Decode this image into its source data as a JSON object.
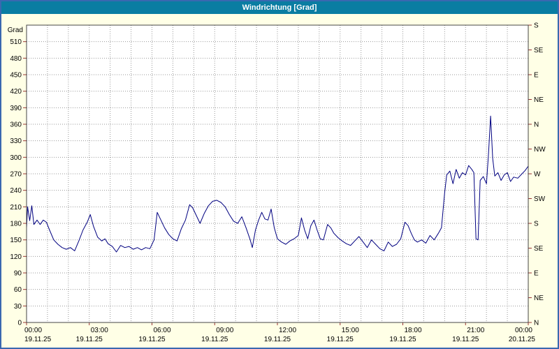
{
  "window": {
    "title": "Windrichtung [Grad]"
  },
  "colors": {
    "page_bg": "#ffffe6",
    "frame_border": "#3a68b0",
    "titlebar_bg": "#0a7da2",
    "titlebar_text": "#ffffff",
    "plot_bg": "#ffffff",
    "plot_border": "#444444",
    "grid": "#999999",
    "tick": "#993333",
    "series": "#000080",
    "label_text": "#000000"
  },
  "chart_data": {
    "type": "line",
    "title": "Windrichtung [Grad]",
    "ylabel": "Grad",
    "ylim": [
      0,
      540
    ],
    "xlim_hours": [
      0,
      24
    ],
    "y_tick_step": 30,
    "y_ticks": [
      0,
      30,
      60,
      90,
      120,
      150,
      180,
      210,
      240,
      270,
      300,
      330,
      360,
      390,
      420,
      450,
      480,
      510
    ],
    "compass_ticks": {
      "degrees": [
        540,
        495,
        450,
        405,
        360,
        315,
        270,
        225,
        180,
        135,
        90,
        45,
        0
      ],
      "labels": [
        "S",
        "SE",
        "E",
        "NE",
        "N",
        "NW",
        "W",
        "SW",
        "S",
        "SE",
        "E",
        "NE",
        "N"
      ]
    },
    "x_ticks": [
      {
        "hour": 0,
        "time": "00:00",
        "date": "19.11.25"
      },
      {
        "hour": 3,
        "time": "03:00",
        "date": "19.11.25"
      },
      {
        "hour": 6,
        "time": "06:00",
        "date": "19.11.25"
      },
      {
        "hour": 9,
        "time": "09:00",
        "date": "19.11.25"
      },
      {
        "hour": 12,
        "time": "12:00",
        "date": "19.11.25"
      },
      {
        "hour": 15,
        "time": "15:00",
        "date": "19.11.25"
      },
      {
        "hour": 18,
        "time": "18:00",
        "date": "19.11.25"
      },
      {
        "hour": 21,
        "time": "21:00",
        "date": "19.11.25"
      },
      {
        "hour": 24,
        "time": "00:00",
        "date": "20.11.25"
      }
    ],
    "grid": {
      "vertical_step_hours": 1,
      "horizontal_step_deg": 30
    },
    "series": [
      {
        "name": "Windrichtung",
        "color": "#000080",
        "points": [
          [
            0,
            172
          ],
          [
            0.05,
            210
          ],
          [
            0.15,
            185
          ],
          [
            0.25,
            212
          ],
          [
            0.35,
            178
          ],
          [
            0.5,
            186
          ],
          [
            0.65,
            178
          ],
          [
            0.8,
            186
          ],
          [
            0.95,
            182
          ],
          [
            1.1,
            168
          ],
          [
            1.3,
            150
          ],
          [
            1.5,
            142
          ],
          [
            1.7,
            136
          ],
          [
            1.9,
            133
          ],
          [
            2.1,
            136
          ],
          [
            2.3,
            130
          ],
          [
            2.5,
            148
          ],
          [
            2.7,
            168
          ],
          [
            2.9,
            182
          ],
          [
            3.05,
            196
          ],
          [
            3.2,
            175
          ],
          [
            3.4,
            155
          ],
          [
            3.6,
            148
          ],
          [
            3.75,
            152
          ],
          [
            3.9,
            143
          ],
          [
            4.1,
            138
          ],
          [
            4.3,
            128
          ],
          [
            4.5,
            140
          ],
          [
            4.7,
            136
          ],
          [
            4.9,
            138
          ],
          [
            5.1,
            133
          ],
          [
            5.3,
            136
          ],
          [
            5.5,
            132
          ],
          [
            5.7,
            136
          ],
          [
            5.9,
            134
          ],
          [
            6.1,
            150
          ],
          [
            6.25,
            200
          ],
          [
            6.4,
            188
          ],
          [
            6.6,
            172
          ],
          [
            6.8,
            160
          ],
          [
            7.0,
            152
          ],
          [
            7.2,
            148
          ],
          [
            7.4,
            170
          ],
          [
            7.6,
            186
          ],
          [
            7.8,
            214
          ],
          [
            7.95,
            208
          ],
          [
            8.1,
            196
          ],
          [
            8.3,
            180
          ],
          [
            8.5,
            198
          ],
          [
            8.7,
            212
          ],
          [
            8.9,
            220
          ],
          [
            9.1,
            222
          ],
          [
            9.3,
            218
          ],
          [
            9.5,
            210
          ],
          [
            9.7,
            196
          ],
          [
            9.9,
            184
          ],
          [
            10.1,
            180
          ],
          [
            10.3,
            192
          ],
          [
            10.5,
            172
          ],
          [
            10.7,
            150
          ],
          [
            10.8,
            136
          ],
          [
            10.95,
            168
          ],
          [
            11.1,
            186
          ],
          [
            11.25,
            200
          ],
          [
            11.4,
            188
          ],
          [
            11.55,
            186
          ],
          [
            11.7,
            206
          ],
          [
            11.85,
            172
          ],
          [
            12.0,
            152
          ],
          [
            12.2,
            146
          ],
          [
            12.4,
            142
          ],
          [
            12.6,
            148
          ],
          [
            12.8,
            152
          ],
          [
            13.0,
            158
          ],
          [
            13.15,
            190
          ],
          [
            13.3,
            168
          ],
          [
            13.45,
            152
          ],
          [
            13.6,
            176
          ],
          [
            13.75,
            186
          ],
          [
            13.9,
            168
          ],
          [
            14.05,
            152
          ],
          [
            14.2,
            150
          ],
          [
            14.4,
            178
          ],
          [
            14.55,
            172
          ],
          [
            14.7,
            162
          ],
          [
            14.9,
            154
          ],
          [
            15.1,
            148
          ],
          [
            15.3,
            143
          ],
          [
            15.5,
            140
          ],
          [
            15.7,
            148
          ],
          [
            15.9,
            156
          ],
          [
            16.1,
            146
          ],
          [
            16.3,
            136
          ],
          [
            16.5,
            150
          ],
          [
            16.7,
            142
          ],
          [
            16.9,
            134
          ],
          [
            17.1,
            130
          ],
          [
            17.3,
            146
          ],
          [
            17.5,
            138
          ],
          [
            17.7,
            142
          ],
          [
            17.9,
            152
          ],
          [
            18.1,
            182
          ],
          [
            18.25,
            176
          ],
          [
            18.4,
            162
          ],
          [
            18.55,
            150
          ],
          [
            18.7,
            146
          ],
          [
            18.9,
            150
          ],
          [
            19.1,
            144
          ],
          [
            19.3,
            158
          ],
          [
            19.5,
            150
          ],
          [
            19.7,
            162
          ],
          [
            19.85,
            172
          ],
          [
            20.0,
            235
          ],
          [
            20.1,
            268
          ],
          [
            20.25,
            275
          ],
          [
            20.4,
            252
          ],
          [
            20.55,
            278
          ],
          [
            20.7,
            262
          ],
          [
            20.85,
            272
          ],
          [
            21.0,
            268
          ],
          [
            21.15,
            285
          ],
          [
            21.3,
            278
          ],
          [
            21.4,
            272
          ],
          [
            21.5,
            152
          ],
          [
            21.6,
            150
          ],
          [
            21.7,
            258
          ],
          [
            21.85,
            265
          ],
          [
            22.0,
            252
          ],
          [
            22.1,
            308
          ],
          [
            22.2,
            375
          ],
          [
            22.3,
            298
          ],
          [
            22.4,
            266
          ],
          [
            22.55,
            272
          ],
          [
            22.7,
            258
          ],
          [
            22.85,
            268
          ],
          [
            23.0,
            272
          ],
          [
            23.15,
            256
          ],
          [
            23.3,
            264
          ],
          [
            23.5,
            262
          ],
          [
            23.7,
            270
          ],
          [
            23.85,
            276
          ],
          [
            24,
            284
          ]
        ]
      }
    ]
  }
}
